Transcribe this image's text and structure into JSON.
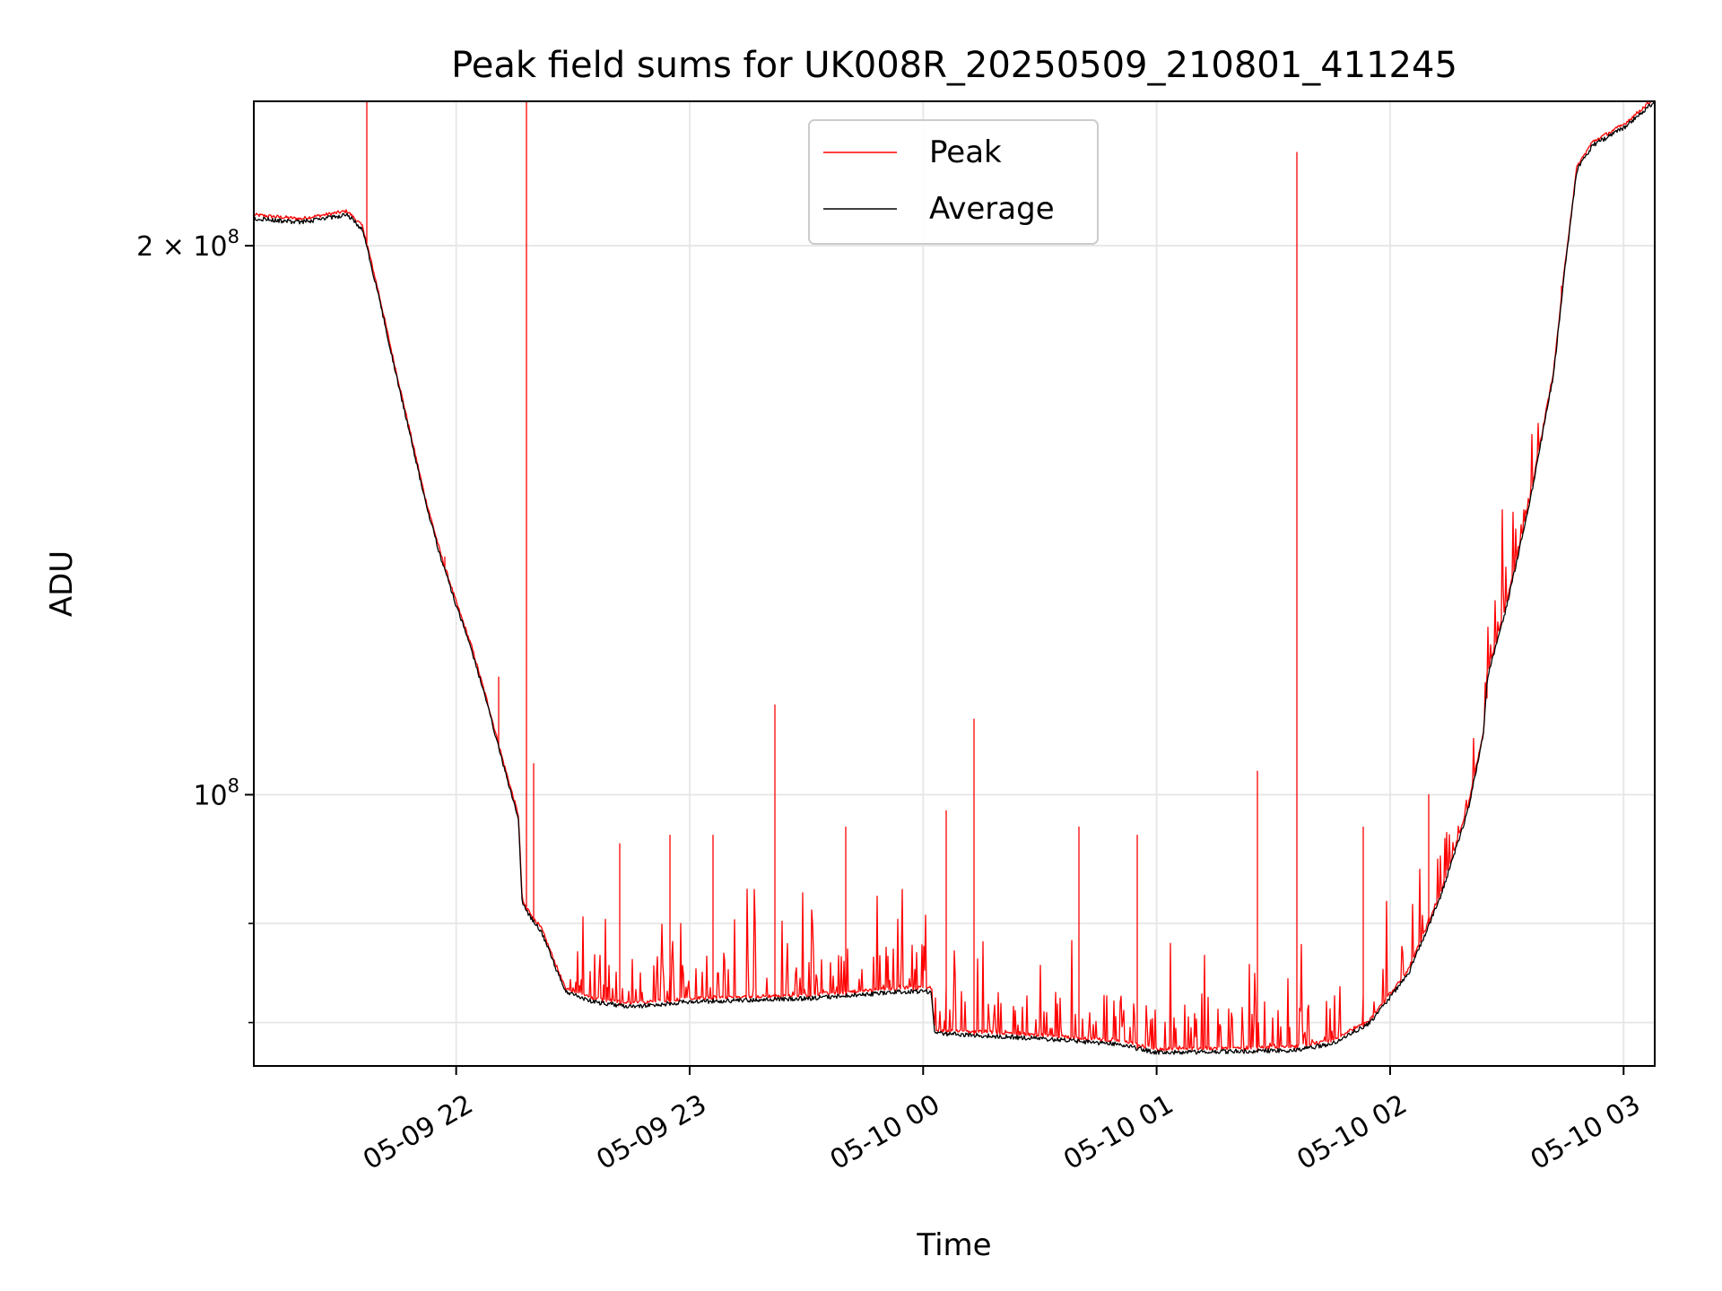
{
  "chart_data": {
    "type": "line",
    "title": "Peak field sums for UK008R_20250509_210801_411245",
    "xlabel": "Time",
    "ylabel": "ADU",
    "y_scale": "log",
    "ylim": [
      71000000,
      240000000
    ],
    "xlim": [
      "2025-05-09 21:08:00",
      "2025-05-10 03:08:00"
    ],
    "grid": true,
    "legend_position": "top-center",
    "x_ticks": [
      {
        "t": "2025-05-09 22:00",
        "label": "05-09 22"
      },
      {
        "t": "2025-05-09 23:00",
        "label": "05-09 23"
      },
      {
        "t": "2025-05-10 00:00",
        "label": "05-10 00"
      },
      {
        "t": "2025-05-10 01:00",
        "label": "05-10 01"
      },
      {
        "t": "2025-05-10 02:00",
        "label": "05-10 02"
      },
      {
        "t": "2025-05-10 03:00",
        "label": "05-10 03"
      }
    ],
    "y_ticks_major": [
      {
        "value": 100000000,
        "label_base": "10",
        "label_exp": "8"
      },
      {
        "value": 200000000,
        "label_base": "2 × 10",
        "label_exp": "8"
      }
    ],
    "y_ticks_minor": [
      75000000,
      85000000
    ],
    "series": [
      {
        "name": "Average",
        "color": "#000000",
        "points": [
          [
            "2025-05-09 21:08",
            207000000
          ],
          [
            "2025-05-09 21:20",
            206000000
          ],
          [
            "2025-05-09 21:32",
            208000000
          ],
          [
            "2025-05-09 21:36",
            204000000
          ],
          [
            "2025-05-09 21:40",
            188000000
          ],
          [
            "2025-05-09 21:44",
            172000000
          ],
          [
            "2025-05-09 21:48",
            158000000
          ],
          [
            "2025-05-09 21:52",
            145000000
          ],
          [
            "2025-05-09 21:56",
            135000000
          ],
          [
            "2025-05-09 22:00",
            127000000
          ],
          [
            "2025-05-09 22:04",
            120000000
          ],
          [
            "2025-05-09 22:08",
            112000000
          ],
          [
            "2025-05-09 22:12",
            104000000
          ],
          [
            "2025-05-09 22:16",
            97000000
          ],
          [
            "2025-05-09 22:17",
            87000000
          ],
          [
            "2025-05-09 22:22",
            84000000
          ],
          [
            "2025-05-09 22:28",
            78000000
          ],
          [
            "2025-05-09 22:35",
            77000000
          ],
          [
            "2025-05-09 22:45",
            76500000
          ],
          [
            "2025-05-09 23:00",
            77000000
          ],
          [
            "2025-05-09 23:30",
            77300000
          ],
          [
            "2025-05-09 23:55",
            78000000
          ],
          [
            "2025-05-10 00:02",
            78000000
          ],
          [
            "2025-05-10 00:03",
            74000000
          ],
          [
            "2025-05-10 00:30",
            73500000
          ],
          [
            "2025-05-10 00:50",
            73000000
          ],
          [
            "2025-05-10 01:00",
            72200000
          ],
          [
            "2025-05-10 01:35",
            72400000
          ],
          [
            "2025-05-10 01:45",
            73000000
          ],
          [
            "2025-05-10 01:55",
            75000000
          ],
          [
            "2025-05-10 02:05",
            80000000
          ],
          [
            "2025-05-10 02:13",
            88000000
          ],
          [
            "2025-05-10 02:20",
            98000000
          ],
          [
            "2025-05-10 02:24",
            108000000
          ],
          [
            "2025-05-10 02:25",
            116000000
          ],
          [
            "2025-05-10 02:30",
            127000000
          ],
          [
            "2025-05-10 02:36",
            145000000
          ],
          [
            "2025-05-10 02:42",
            170000000
          ],
          [
            "2025-05-10 02:45",
            195000000
          ],
          [
            "2025-05-10 02:48",
            220000000
          ],
          [
            "2025-05-10 02:52",
            227000000
          ],
          [
            "2025-05-10 03:00",
            232000000
          ],
          [
            "2025-05-10 03:08",
            240000000
          ]
        ]
      },
      {
        "name": "Peak",
        "color": "#ff0000",
        "spikes": [
          [
            "2025-05-09 21:37",
            240000000
          ],
          [
            "2025-05-09 21:57",
            135000000
          ],
          [
            "2025-05-09 22:11",
            116000000
          ],
          [
            "2025-05-09 22:18",
            240000000
          ],
          [
            "2025-05-09 22:20",
            104000000
          ],
          [
            "2025-05-09 22:42",
            94000000
          ],
          [
            "2025-05-09 22:55",
            95000000
          ],
          [
            "2025-05-09 23:06",
            95000000
          ],
          [
            "2025-05-09 23:22",
            112000000
          ],
          [
            "2025-05-09 23:40",
            96000000
          ],
          [
            "2025-05-10 00:06",
            98000000
          ],
          [
            "2025-05-10 00:13",
            110000000
          ],
          [
            "2025-05-10 00:40",
            96000000
          ],
          [
            "2025-05-10 00:55",
            95000000
          ],
          [
            "2025-05-10 01:26",
            103000000
          ],
          [
            "2025-05-10 01:36",
            225000000
          ],
          [
            "2025-05-10 01:53",
            96000000
          ],
          [
            "2025-05-10 02:10",
            100000000
          ],
          [
            "2025-05-10 02:25",
            113000000
          ],
          [
            "2025-05-10 02:44",
            190000000
          ]
        ]
      }
    ]
  }
}
